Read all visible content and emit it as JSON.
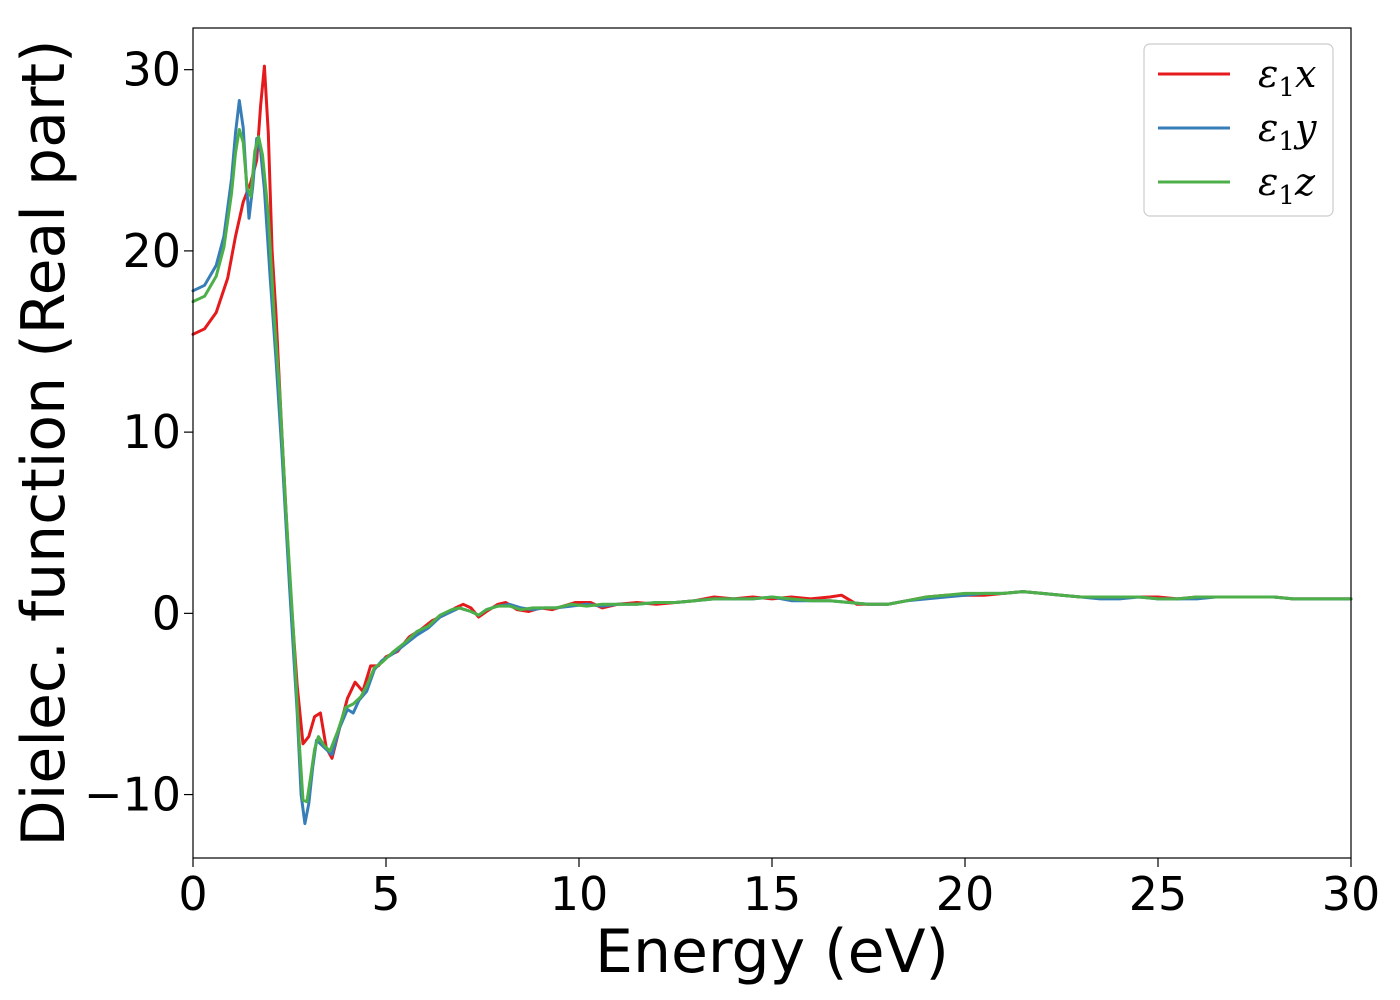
{
  "chart_data": {
    "type": "line",
    "title": "",
    "xlabel": "Energy (eV)",
    "ylabel": "Dielec. function (Real part)",
    "xlim": [
      0,
      30
    ],
    "ylim": [
      -13.5,
      32.3
    ],
    "xticks": [
      0,
      5,
      10,
      15,
      20,
      25,
      30
    ],
    "xtick_labels": [
      "0",
      "5",
      "10",
      "15",
      "20",
      "25",
      "30"
    ],
    "yticks": [
      -10,
      0,
      10,
      20,
      30
    ],
    "ytick_labels": [
      "−10",
      "0",
      "10",
      "20",
      "30"
    ],
    "grid": false,
    "legend": {
      "position": "top-right",
      "entries": [
        {
          "base": "ε",
          "sub": "1",
          "suffix": "x"
        },
        {
          "base": "ε",
          "sub": "1",
          "suffix": "y"
        },
        {
          "base": "ε",
          "sub": "1",
          "suffix": "z"
        }
      ]
    },
    "series": [
      {
        "color": "#e41a1c",
        "points": [
          [
            0,
            15.4
          ],
          [
            0.3,
            15.7
          ],
          [
            0.6,
            16.6
          ],
          [
            0.9,
            18.5
          ],
          [
            1.1,
            20.8
          ],
          [
            1.3,
            22.7
          ],
          [
            1.5,
            23.8
          ],
          [
            1.65,
            25
          ],
          [
            1.75,
            28
          ],
          [
            1.85,
            30.2
          ],
          [
            1.95,
            26.5
          ],
          [
            2.05,
            20
          ],
          [
            2.15,
            16.5
          ],
          [
            2.3,
            10
          ],
          [
            2.5,
            2
          ],
          [
            2.7,
            -4
          ],
          [
            2.85,
            -7.2
          ],
          [
            3.0,
            -6.8
          ],
          [
            3.15,
            -5.7
          ],
          [
            3.3,
            -5.5
          ],
          [
            3.45,
            -7.4
          ],
          [
            3.6,
            -8.0
          ],
          [
            3.8,
            -6.3
          ],
          [
            4.0,
            -4.7
          ],
          [
            4.2,
            -3.8
          ],
          [
            4.4,
            -4.3
          ],
          [
            4.6,
            -2.9
          ],
          [
            4.8,
            -2.9
          ],
          [
            5.0,
            -2.4
          ],
          [
            5.3,
            -2.1
          ],
          [
            5.6,
            -1.3
          ],
          [
            5.9,
            -0.9
          ],
          [
            6.2,
            -0.4
          ],
          [
            6.5,
            -0.1
          ],
          [
            6.8,
            0.3
          ],
          [
            7.0,
            0.5
          ],
          [
            7.2,
            0.3
          ],
          [
            7.4,
            -0.2
          ],
          [
            7.6,
            0.1
          ],
          [
            7.9,
            0.5
          ],
          [
            8.1,
            0.6
          ],
          [
            8.4,
            0.2
          ],
          [
            8.7,
            0.1
          ],
          [
            9.0,
            0.3
          ],
          [
            9.3,
            0.2
          ],
          [
            9.6,
            0.4
          ],
          [
            9.9,
            0.6
          ],
          [
            10.3,
            0.6
          ],
          [
            10.6,
            0.3
          ],
          [
            11.0,
            0.5
          ],
          [
            11.5,
            0.6
          ],
          [
            12.0,
            0.5
          ],
          [
            12.5,
            0.6
          ],
          [
            13.0,
            0.7
          ],
          [
            13.5,
            0.9
          ],
          [
            14.0,
            0.8
          ],
          [
            14.5,
            0.9
          ],
          [
            15.0,
            0.8
          ],
          [
            15.5,
            0.9
          ],
          [
            16.0,
            0.8
          ],
          [
            16.5,
            0.9
          ],
          [
            16.8,
            1.0
          ],
          [
            17.2,
            0.5
          ],
          [
            17.6,
            0.5
          ],
          [
            18.0,
            0.5
          ],
          [
            18.5,
            0.7
          ],
          [
            19.0,
            0.9
          ],
          [
            19.5,
            1.0
          ],
          [
            20.0,
            1.0
          ],
          [
            20.5,
            1.0
          ],
          [
            21.0,
            1.1
          ],
          [
            21.5,
            1.2
          ],
          [
            22.0,
            1.1
          ],
          [
            22.5,
            1.0
          ],
          [
            23.0,
            0.9
          ],
          [
            23.5,
            0.9
          ],
          [
            24.0,
            0.9
          ],
          [
            24.5,
            0.9
          ],
          [
            25.0,
            0.9
          ],
          [
            25.5,
            0.8
          ],
          [
            26.0,
            0.9
          ],
          [
            26.5,
            0.9
          ],
          [
            27.0,
            0.9
          ],
          [
            27.5,
            0.9
          ],
          [
            28.0,
            0.9
          ],
          [
            28.5,
            0.8
          ],
          [
            29.0,
            0.8
          ],
          [
            29.5,
            0.8
          ],
          [
            30.0,
            0.8
          ]
        ]
      },
      {
        "color": "#377eb8",
        "points": [
          [
            0,
            17.8
          ],
          [
            0.3,
            18.1
          ],
          [
            0.6,
            19.2
          ],
          [
            0.8,
            20.8
          ],
          [
            1.0,
            24
          ],
          [
            1.1,
            26.5
          ],
          [
            1.2,
            28.3
          ],
          [
            1.3,
            26.8
          ],
          [
            1.4,
            23.3
          ],
          [
            1.45,
            21.8
          ],
          [
            1.55,
            23.6
          ],
          [
            1.65,
            26.2
          ],
          [
            1.75,
            25.5
          ],
          [
            1.85,
            23.4
          ],
          [
            2.0,
            18.5
          ],
          [
            2.15,
            14
          ],
          [
            2.3,
            9
          ],
          [
            2.5,
            1.5
          ],
          [
            2.7,
            -5.5
          ],
          [
            2.8,
            -10
          ],
          [
            2.9,
            -11.6
          ],
          [
            3.0,
            -10.5
          ],
          [
            3.1,
            -8.5
          ],
          [
            3.2,
            -7.0
          ],
          [
            3.3,
            -7.2
          ],
          [
            3.45,
            -7.5
          ],
          [
            3.6,
            -7.8
          ],
          [
            3.8,
            -6.3
          ],
          [
            4.0,
            -5.3
          ],
          [
            4.15,
            -5.5
          ],
          [
            4.3,
            -4.8
          ],
          [
            4.5,
            -4.3
          ],
          [
            4.7,
            -3.1
          ],
          [
            4.9,
            -2.6
          ],
          [
            5.2,
            -2.2
          ],
          [
            5.5,
            -1.7
          ],
          [
            5.8,
            -1.2
          ],
          [
            6.1,
            -0.8
          ],
          [
            6.4,
            -0.2
          ],
          [
            6.7,
            0.1
          ],
          [
            6.9,
            0.3
          ],
          [
            7.2,
            0.1
          ],
          [
            7.4,
            -0.1
          ],
          [
            7.6,
            0.2
          ],
          [
            7.9,
            0.4
          ],
          [
            8.2,
            0.5
          ],
          [
            8.5,
            0.3
          ],
          [
            8.8,
            0.2
          ],
          [
            9.1,
            0.3
          ],
          [
            9.4,
            0.3
          ],
          [
            9.8,
            0.4
          ],
          [
            10.2,
            0.5
          ],
          [
            10.6,
            0.4
          ],
          [
            11.0,
            0.5
          ],
          [
            11.5,
            0.5
          ],
          [
            12.0,
            0.6
          ],
          [
            12.5,
            0.6
          ],
          [
            13.0,
            0.7
          ],
          [
            13.5,
            0.8
          ],
          [
            14.0,
            0.8
          ],
          [
            14.5,
            0.8
          ],
          [
            15.0,
            0.9
          ],
          [
            15.5,
            0.7
          ],
          [
            16.0,
            0.7
          ],
          [
            16.5,
            0.7
          ],
          [
            17.0,
            0.6
          ],
          [
            17.5,
            0.5
          ],
          [
            18.0,
            0.5
          ],
          [
            18.5,
            0.7
          ],
          [
            19.0,
            0.8
          ],
          [
            19.5,
            0.9
          ],
          [
            20.0,
            1.0
          ],
          [
            20.5,
            1.1
          ],
          [
            21.0,
            1.1
          ],
          [
            21.5,
            1.2
          ],
          [
            22.0,
            1.1
          ],
          [
            22.5,
            1.0
          ],
          [
            23.0,
            0.9
          ],
          [
            23.5,
            0.8
          ],
          [
            24.0,
            0.8
          ],
          [
            24.5,
            0.9
          ],
          [
            25.0,
            0.8
          ],
          [
            25.5,
            0.8
          ],
          [
            26.0,
            0.8
          ],
          [
            26.5,
            0.9
          ],
          [
            27.0,
            0.9
          ],
          [
            27.5,
            0.9
          ],
          [
            28.0,
            0.9
          ],
          [
            28.5,
            0.8
          ],
          [
            29.0,
            0.8
          ],
          [
            29.5,
            0.8
          ],
          [
            30.0,
            0.8
          ]
        ]
      },
      {
        "color": "#4daf4a",
        "points": [
          [
            0,
            17.2
          ],
          [
            0.3,
            17.5
          ],
          [
            0.6,
            18.6
          ],
          [
            0.8,
            20.2
          ],
          [
            1.0,
            23.2
          ],
          [
            1.1,
            25.4
          ],
          [
            1.2,
            26.7
          ],
          [
            1.3,
            26.0
          ],
          [
            1.4,
            23.5
          ],
          [
            1.5,
            23.0
          ],
          [
            1.6,
            25.5
          ],
          [
            1.7,
            26.3
          ],
          [
            1.8,
            25.3
          ],
          [
            1.95,
            22
          ],
          [
            2.1,
            16.5
          ],
          [
            2.25,
            12
          ],
          [
            2.4,
            6
          ],
          [
            2.6,
            -1
          ],
          [
            2.75,
            -7
          ],
          [
            2.85,
            -10.3
          ],
          [
            2.95,
            -10.4
          ],
          [
            3.05,
            -9
          ],
          [
            3.15,
            -7.5
          ],
          [
            3.25,
            -6.8
          ],
          [
            3.4,
            -7.3
          ],
          [
            3.55,
            -7.6
          ],
          [
            3.75,
            -6.5
          ],
          [
            3.95,
            -5.2
          ],
          [
            4.15,
            -5.0
          ],
          [
            4.35,
            -4.6
          ],
          [
            4.5,
            -4.0
          ],
          [
            4.7,
            -3.0
          ],
          [
            4.9,
            -2.7
          ],
          [
            5.2,
            -2.1
          ],
          [
            5.5,
            -1.6
          ],
          [
            5.8,
            -1.0
          ],
          [
            6.1,
            -0.7
          ],
          [
            6.4,
            -0.1
          ],
          [
            6.7,
            0.2
          ],
          [
            6.9,
            0.3
          ],
          [
            7.2,
            0.1
          ],
          [
            7.4,
            -0.1
          ],
          [
            7.6,
            0.2
          ],
          [
            7.9,
            0.4
          ],
          [
            8.2,
            0.4
          ],
          [
            8.5,
            0.2
          ],
          [
            8.8,
            0.3
          ],
          [
            9.1,
            0.3
          ],
          [
            9.4,
            0.3
          ],
          [
            9.8,
            0.5
          ],
          [
            10.2,
            0.4
          ],
          [
            10.6,
            0.5
          ],
          [
            11.0,
            0.5
          ],
          [
            11.5,
            0.5
          ],
          [
            12.0,
            0.6
          ],
          [
            12.5,
            0.6
          ],
          [
            13.0,
            0.7
          ],
          [
            13.5,
            0.8
          ],
          [
            14.0,
            0.8
          ],
          [
            14.5,
            0.8
          ],
          [
            15.0,
            0.9
          ],
          [
            15.5,
            0.8
          ],
          [
            16.0,
            0.7
          ],
          [
            16.5,
            0.7
          ],
          [
            17.0,
            0.6
          ],
          [
            17.5,
            0.5
          ],
          [
            18.0,
            0.5
          ],
          [
            18.5,
            0.7
          ],
          [
            19.0,
            0.9
          ],
          [
            19.5,
            1.0
          ],
          [
            20.0,
            1.1
          ],
          [
            20.5,
            1.1
          ],
          [
            21.0,
            1.1
          ],
          [
            21.5,
            1.2
          ],
          [
            22.0,
            1.1
          ],
          [
            22.5,
            1.0
          ],
          [
            23.0,
            0.9
          ],
          [
            23.5,
            0.9
          ],
          [
            24.0,
            0.9
          ],
          [
            24.5,
            0.9
          ],
          [
            25.0,
            0.8
          ],
          [
            25.5,
            0.8
          ],
          [
            26.0,
            0.9
          ],
          [
            26.5,
            0.9
          ],
          [
            27.0,
            0.9
          ],
          [
            27.5,
            0.9
          ],
          [
            28.0,
            0.9
          ],
          [
            28.5,
            0.8
          ],
          [
            29.0,
            0.8
          ],
          [
            29.5,
            0.8
          ],
          [
            30.0,
            0.8
          ]
        ]
      }
    ]
  }
}
